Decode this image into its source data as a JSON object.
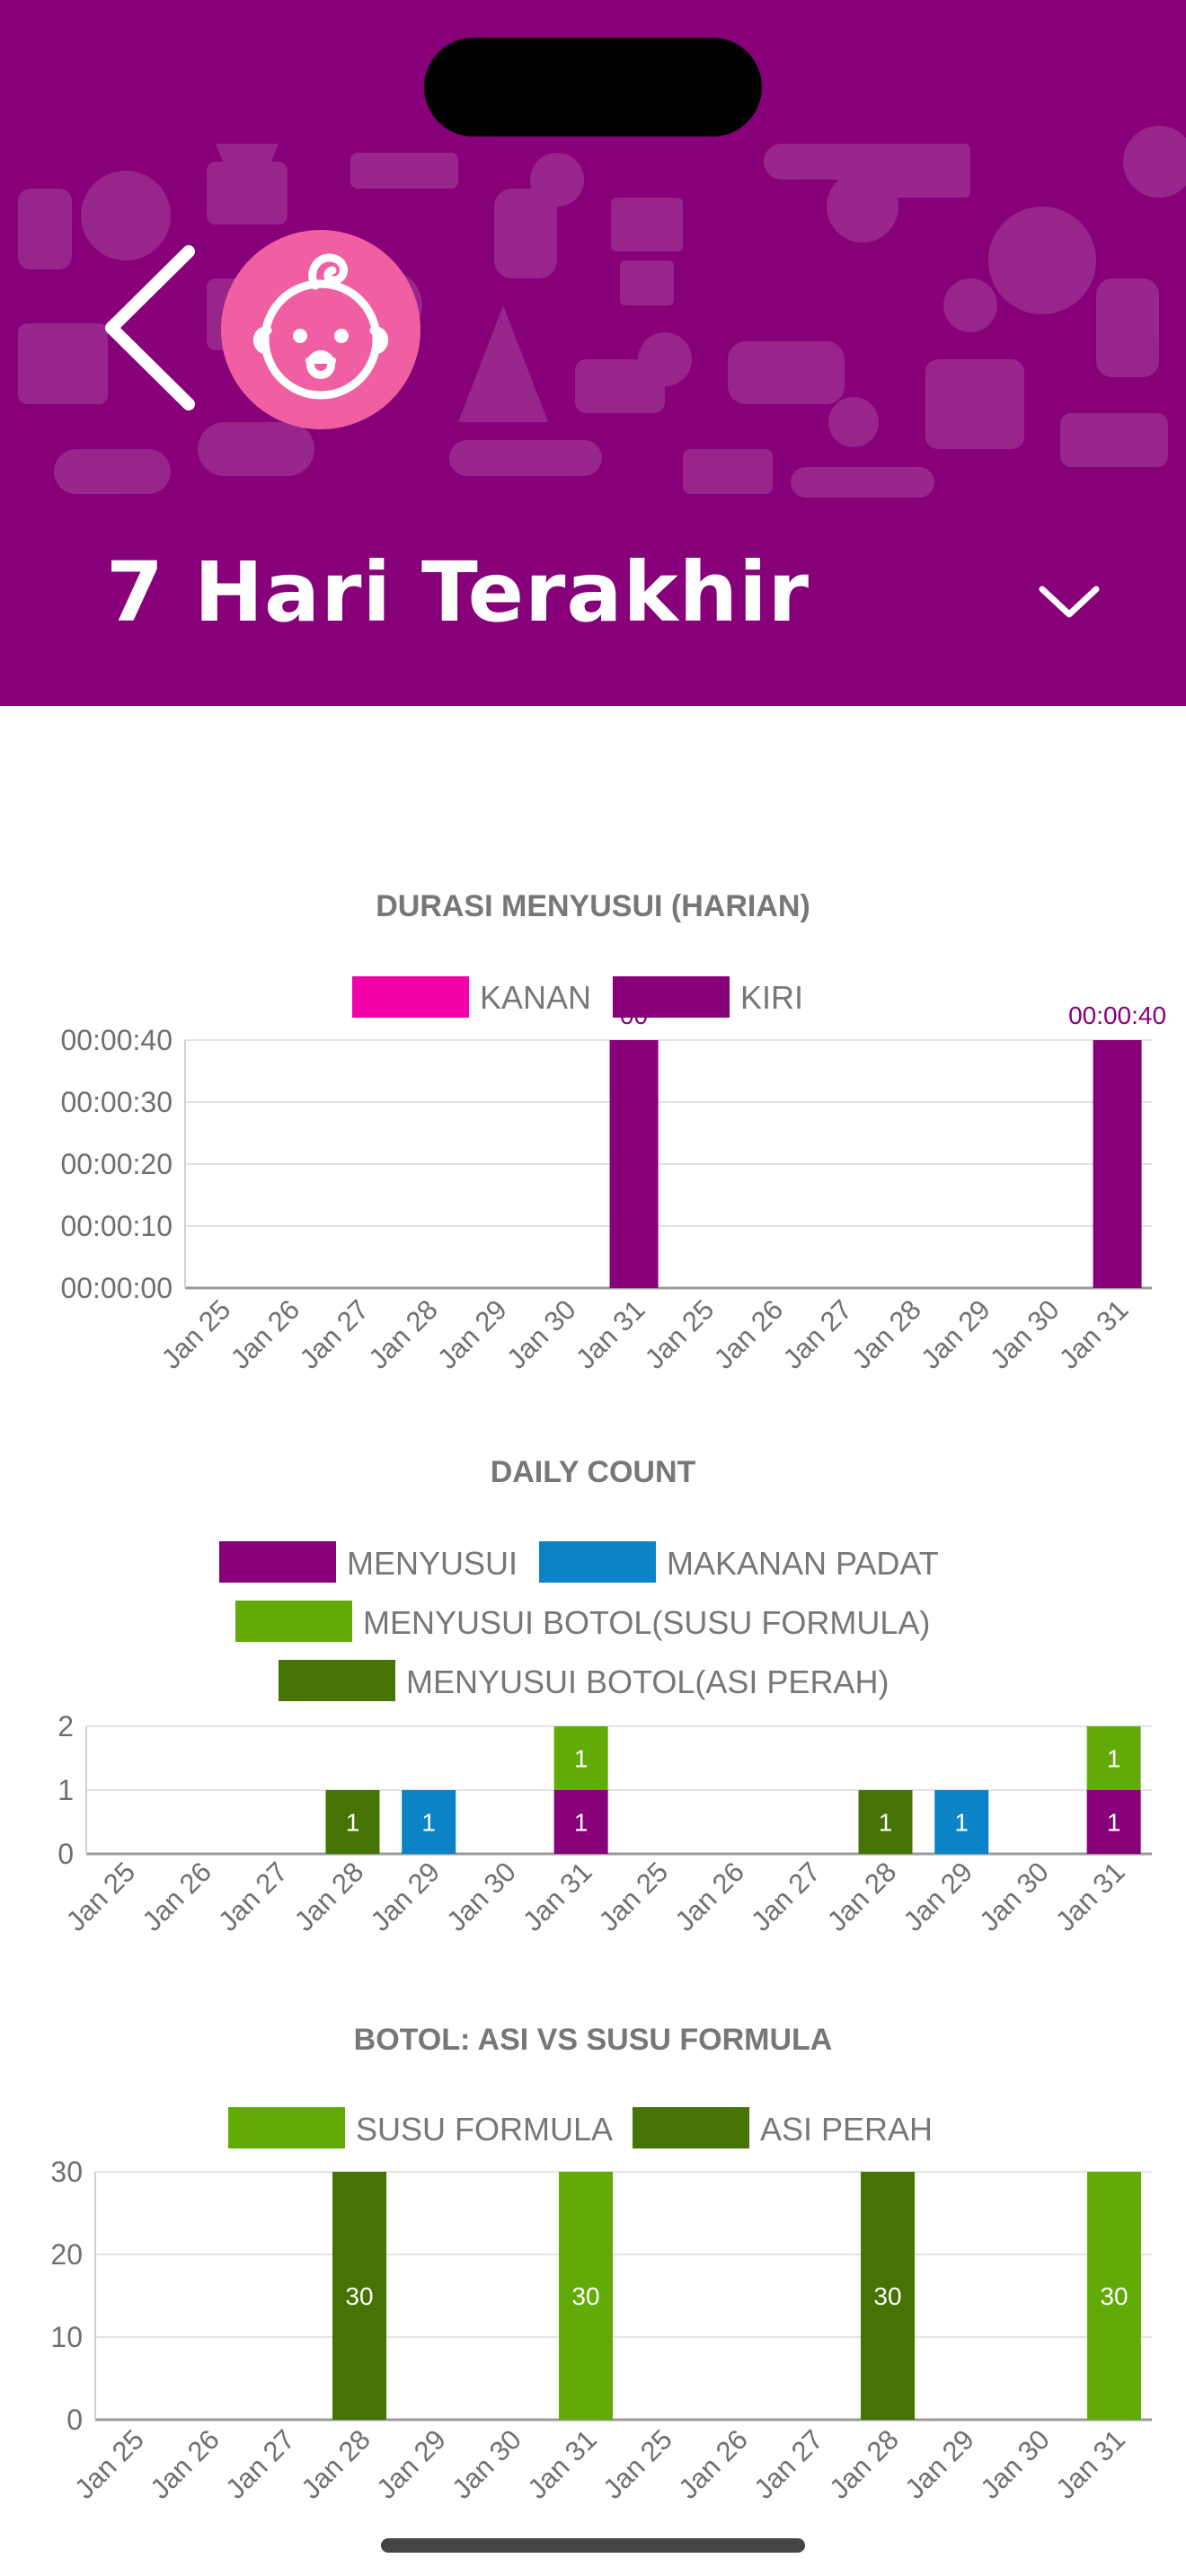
{
  "header": {
    "title": "7 Hari Terakhir",
    "bg_color": "#870079",
    "avatar_color": "#ef5fa2",
    "back_icon": "chevron-left-icon",
    "avatar_icon": "baby-face-icon",
    "dropdown_icon": "chevron-down-icon"
  },
  "chart_data": [
    {
      "type": "bar",
      "title": "DURASI MENYUSUI (HARIAN)",
      "categories": [
        "Jan 25",
        "Jan 26",
        "Jan 27",
        "Jan 28",
        "Jan 29",
        "Jan 30",
        "Jan 31",
        "Jan 25",
        "Jan 26",
        "Jan 27",
        "Jan 28",
        "Jan 29",
        "Jan 30",
        "Jan 31"
      ],
      "series": [
        {
          "name": "KANAN",
          "color": "#f200a8",
          "values": [
            0,
            0,
            0,
            0,
            0,
            0,
            0,
            0,
            0,
            0,
            0,
            0,
            0,
            0
          ]
        },
        {
          "name": "KIRI",
          "color": "#870079",
          "values": [
            0,
            0,
            0,
            0,
            0,
            0,
            40,
            0,
            0,
            0,
            0,
            0,
            0,
            40
          ]
        }
      ],
      "y_unit": "seconds",
      "ylim": [
        0,
        40
      ],
      "yticks": [
        "00:00:00",
        "00:00:10",
        "00:00:20",
        "00:00:30",
        "00:00:40"
      ],
      "data_labels": [
        "00",
        "00:00:40"
      ],
      "legend": "top",
      "grid": true
    },
    {
      "type": "bar",
      "stacked": true,
      "title": "DAILY COUNT",
      "categories": [
        "Jan 25",
        "Jan 26",
        "Jan 27",
        "Jan 28",
        "Jan 29",
        "Jan 30",
        "Jan 31",
        "Jan 25",
        "Jan 26",
        "Jan 27",
        "Jan 28",
        "Jan 29",
        "Jan 30",
        "Jan 31"
      ],
      "series": [
        {
          "name": "MENYUSUI",
          "color": "#870079",
          "values": [
            0,
            0,
            0,
            0,
            0,
            0,
            1,
            0,
            0,
            0,
            0,
            0,
            0,
            1
          ]
        },
        {
          "name": "MAKANAN PADAT",
          "color": "#0a84c6",
          "values": [
            0,
            0,
            0,
            0,
            1,
            0,
            0,
            0,
            0,
            0,
            0,
            1,
            0,
            0
          ]
        },
        {
          "name": "MENYUSUI BOTOL(SUSU FORMULA)",
          "color": "#62ab07",
          "values": [
            0,
            0,
            0,
            0,
            0,
            0,
            1,
            0,
            0,
            0,
            0,
            0,
            0,
            1
          ]
        },
        {
          "name": "MENYUSUI BOTOL(ASI PERAH)",
          "color": "#457304",
          "values": [
            0,
            0,
            0,
            1,
            0,
            0,
            0,
            0,
            0,
            0,
            1,
            0,
            0,
            0
          ]
        }
      ],
      "ylim": [
        0,
        2
      ],
      "yticks": [
        "0",
        "1",
        "2"
      ],
      "legend": "top",
      "grid": true
    },
    {
      "type": "bar",
      "title": "BOTOL: ASI VS SUSU FORMULA",
      "categories": [
        "Jan 25",
        "Jan 26",
        "Jan 27",
        "Jan 28",
        "Jan 29",
        "Jan 30",
        "Jan 31",
        "Jan 25",
        "Jan 26",
        "Jan 27",
        "Jan 28",
        "Jan 29",
        "Jan 30",
        "Jan 31"
      ],
      "series": [
        {
          "name": "SUSU FORMULA",
          "color": "#62ab07",
          "values": [
            0,
            0,
            0,
            0,
            0,
            0,
            30,
            0,
            0,
            0,
            0,
            0,
            0,
            30
          ]
        },
        {
          "name": "ASI PERAH",
          "color": "#457304",
          "values": [
            0,
            0,
            0,
            30,
            0,
            0,
            0,
            0,
            0,
            0,
            30,
            0,
            0,
            0
          ]
        }
      ],
      "ylim": [
        0,
        30
      ],
      "yticks": [
        "0",
        "10",
        "20",
        "30"
      ],
      "legend": "top",
      "grid": true
    }
  ]
}
